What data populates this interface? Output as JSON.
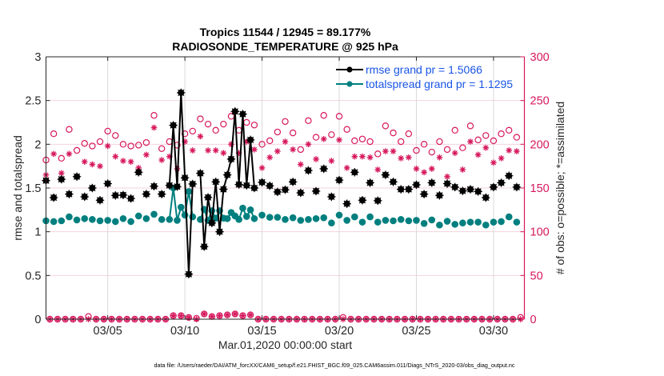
{
  "figure": {
    "title_line1": "Tropics 11544 / 12945 = 89.177%",
    "title_line2": "RADIOSONDE_TEMPERATURE @ 925 hPa",
    "footer": "data file: /Users/raeder/DAI/ATM_forcXX/CAM6_setup/f.e21.FHIST_BGC.f09_025.CAM6assim.011/Diags_NTrS_2020-03/obs_diag_output.nc"
  },
  "colors": {
    "rmse": "#000000",
    "totalspread": "#007f7f",
    "obs": "#d6175c",
    "legend_text": "#1a55e6",
    "grid_horizontal": "#f5d3df",
    "grid_vertical": "#d9d9d9"
  },
  "chart_data": {
    "type": "line",
    "title": "Tropics 11544 / 12945 = 89.177% RADIOSONDE_TEMPERATURE @ 925 hPa",
    "xlabel": "Mar.01,2020 00:00:00 start",
    "ylabel_left": "rmse and totalspread",
    "ylabel_right": "# of obs: o=possible; *=assimilated",
    "x_unit": "days since Mar.01,2020 00:00:00",
    "xlim": [
      0,
      31
    ],
    "ylim_left": [
      0,
      3
    ],
    "ylim_right": [
      0,
      300
    ],
    "grid": true,
    "x_ticks": [
      {
        "value": 4,
        "label": "03/05"
      },
      {
        "value": 9,
        "label": "03/10"
      },
      {
        "value": 14,
        "label": "03/15"
      },
      {
        "value": 19,
        "label": "03/20"
      },
      {
        "value": 24,
        "label": "03/25"
      },
      {
        "value": 29,
        "label": "03/30"
      }
    ],
    "y_left_ticks": [
      {
        "value": 0,
        "label": "0"
      },
      {
        "value": 0.5,
        "label": "0.5"
      },
      {
        "value": 1,
        "label": "1"
      },
      {
        "value": 1.5,
        "label": "1.5"
      },
      {
        "value": 2,
        "label": "2"
      },
      {
        "value": 2.5,
        "label": "2.5"
      },
      {
        "value": 3,
        "label": "3"
      }
    ],
    "y_right_ticks": [
      {
        "value": 0,
        "label": "0"
      },
      {
        "value": 50,
        "label": "50"
      },
      {
        "value": 100,
        "label": "100"
      },
      {
        "value": 150,
        "label": "150"
      },
      {
        "value": 200,
        "label": "200"
      },
      {
        "value": 250,
        "label": "250"
      },
      {
        "value": 300,
        "label": "300"
      }
    ],
    "legend": {
      "location": "top-right",
      "entries": [
        {
          "label": "rmse grand pr = 1.5066",
          "series": "rmse"
        },
        {
          "label": "totalspread grand pr = 1.1295",
          "series": "totalspread"
        }
      ]
    },
    "x": [
      0,
      0.25,
      0.5,
      0.75,
      1,
      1.25,
      1.5,
      1.75,
      2,
      2.25,
      2.5,
      2.75,
      3,
      3.25,
      3.5,
      3.75,
      4,
      4.25,
      4.5,
      4.75,
      5,
      5.25,
      5.5,
      5.75,
      6,
      6.25,
      6.5,
      6.75,
      7,
      7.25,
      7.5,
      7.75,
      8,
      8.25,
      8.5,
      8.75,
      9,
      9.25,
      9.5,
      9.75,
      10,
      10.25,
      10.5,
      10.75,
      11,
      11.25,
      11.5,
      11.75,
      12,
      12.25,
      12.5,
      12.75,
      13,
      13.25,
      13.5,
      13.75,
      14,
      14.25,
      14.5,
      14.75,
      15,
      15.25,
      15.5,
      15.75,
      16,
      16.25,
      16.5,
      16.75,
      17,
      17.25,
      17.5,
      17.75,
      18,
      18.25,
      18.5,
      18.75,
      19,
      19.25,
      19.5,
      19.75,
      20,
      20.25,
      20.5,
      20.75,
      21,
      21.25,
      21.5,
      21.75,
      22,
      22.25,
      22.5,
      22.75,
      23,
      23.25,
      23.5,
      23.75,
      24,
      24.25,
      24.5,
      24.75,
      25,
      25.25,
      25.5,
      25.75,
      26,
      26.25,
      26.5,
      26.75,
      27,
      27.25,
      27.5,
      27.75,
      28,
      28.25,
      28.5,
      28.75,
      29,
      29.25,
      29.5,
      29.75,
      30,
      30.25,
      30.5,
      30.75
    ],
    "series": [
      {
        "name": "obs possible",
        "key": "possible",
        "axis": "right",
        "marker": "o",
        "line": false,
        "values": [
          182,
          0,
          212,
          0,
          184,
          0,
          217,
          0,
          193,
          0,
          201,
          3,
          198,
          0,
          203,
          0,
          215,
          0,
          210,
          0,
          200,
          0,
          198,
          0,
          199,
          0,
          202,
          0,
          233,
          0,
          195,
          0,
          203,
          4,
          199,
          4,
          212,
          2,
          215,
          1,
          229,
          6,
          223,
          3,
          216,
          4,
          223,
          5,
          232,
          6,
          216,
          4,
          225,
          5,
          222,
          0,
          200,
          0,
          204,
          0,
          214,
          0,
          226,
          0,
          213,
          0,
          194,
          0,
          227,
          0,
          208,
          0,
          233,
          0,
          211,
          0,
          232,
          2,
          217,
          0,
          204,
          0,
          206,
          0,
          203,
          0,
          189,
          0,
          221,
          0,
          213,
          0,
          203,
          0,
          212,
          0,
          193,
          0,
          200,
          0,
          191,
          0,
          203,
          0,
          194,
          0,
          216,
          0,
          196,
          0,
          221,
          0,
          205,
          0,
          210,
          0,
          204,
          0,
          212,
          0,
          216,
          0,
          208,
          2
        ]
      },
      {
        "name": "obs assimilated",
        "key": "assimilated",
        "axis": "right",
        "marker": "*",
        "line": false,
        "values": [
          165,
          0,
          189,
          0,
          167,
          0,
          189,
          0,
          163,
          0,
          180,
          0,
          177,
          0,
          175,
          0,
          198,
          0,
          186,
          0,
          181,
          0,
          180,
          0,
          173,
          0,
          188,
          0,
          219,
          0,
          182,
          0,
          186,
          4,
          172,
          4,
          203,
          2,
          193,
          0,
          209,
          6,
          193,
          3,
          193,
          4,
          190,
          5,
          200,
          6,
          190,
          4,
          203,
          5,
          194,
          0,
          173,
          0,
          185,
          0,
          192,
          0,
          203,
          0,
          194,
          0,
          177,
          0,
          200,
          0,
          183,
          0,
          206,
          0,
          181,
          0,
          205,
          0,
          173,
          0,
          186,
          0,
          186,
          0,
          185,
          0,
          171,
          0,
          192,
          0,
          192,
          0,
          184,
          0,
          185,
          0,
          172,
          0,
          168,
          0,
          172,
          0,
          185,
          0,
          163,
          0,
          190,
          0,
          171,
          0,
          203,
          0,
          188,
          0,
          196,
          0,
          179,
          0,
          184,
          0,
          193,
          0,
          192,
          0
        ]
      },
      {
        "name": "totalspread",
        "key": "totalspread",
        "axis": "left",
        "marker": "filled-circle",
        "line": true,
        "values": [
          1.125,
          null,
          1.116,
          null,
          1.125,
          null,
          1.17,
          null,
          1.135,
          null,
          1.15,
          null,
          1.14,
          null,
          1.125,
          null,
          1.13,
          null,
          1.116,
          null,
          1.15,
          null,
          1.116,
          null,
          1.18,
          null,
          1.15,
          null,
          1.2,
          null,
          1.14,
          null,
          1.14,
          1.5,
          1.13,
          1.28,
          1.19,
          1.46,
          1.17,
          null,
          1.14,
          1.256,
          1.13,
          1.24,
          1.155,
          1.24,
          1.155,
          1.15,
          1.22,
          1.18,
          1.14,
          1.27,
          1.175,
          1.25,
          1.15,
          null,
          1.19,
          null,
          1.165,
          null,
          1.165,
          null,
          1.14,
          null,
          1.16,
          null,
          1.13,
          null,
          1.14,
          null,
          1.15,
          null,
          1.16,
          null,
          1.1,
          null,
          1.19,
          null,
          1.13,
          null,
          1.17,
          null,
          1.11,
          null,
          1.17,
          null,
          1.11,
          null,
          1.13,
          null,
          1.125,
          null,
          1.14,
          null,
          1.125,
          null,
          1.13,
          null,
          1.095,
          null,
          1.135,
          null,
          1.077,
          null,
          1.12,
          null,
          1.085,
          null,
          1.1,
          null,
          1.11,
          null,
          1.11,
          null,
          1.077,
          null,
          1.11,
          null,
          1.116,
          null,
          1.17,
          null,
          1.11,
          null
        ]
      },
      {
        "name": "rmse",
        "key": "rmse",
        "axis": "left",
        "marker": "filled-star-circle",
        "line": true,
        "values": [
          1.585,
          null,
          1.39,
          null,
          1.6,
          null,
          1.43,
          null,
          1.63,
          null,
          1.4,
          null,
          1.5,
          null,
          1.36,
          null,
          1.55,
          null,
          1.415,
          null,
          1.42,
          null,
          1.38,
          null,
          1.68,
          null,
          1.43,
          null,
          1.52,
          null,
          1.43,
          null,
          1.53,
          2.217,
          1.516,
          2.589,
          1.617,
          0.515,
          1.546,
          null,
          1.668,
          0.83,
          1.393,
          1.1,
          1.57,
          1.0,
          1.485,
          1.65,
          1.83,
          2.375,
          1.54,
          2.345,
          1.53,
          2.05,
          1.5,
          null,
          1.565,
          null,
          1.525,
          null,
          1.455,
          null,
          1.48,
          null,
          1.57,
          null,
          1.445,
          null,
          1.7,
          null,
          1.464,
          null,
          1.72,
          null,
          1.4,
          null,
          1.59,
          null,
          1.32,
          null,
          1.68,
          null,
          1.36,
          null,
          1.56,
          null,
          1.355,
          null,
          1.65,
          null,
          1.57,
          null,
          1.485,
          null,
          1.485,
          null,
          1.537,
          null,
          1.43,
          null,
          1.56,
          null,
          1.415,
          null,
          1.55,
          null,
          1.51,
          null,
          1.467,
          null,
          1.485,
          null,
          1.46,
          null,
          1.39,
          null,
          1.51,
          null,
          1.56,
          null,
          1.64,
          null,
          1.51,
          null
        ]
      }
    ]
  }
}
